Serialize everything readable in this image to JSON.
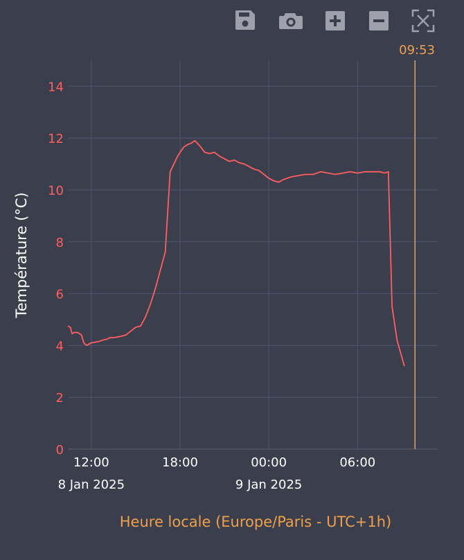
{
  "colors": {
    "background": "#3b3e4c",
    "grid": "#525670",
    "series": "#ff5f5f",
    "ytick": "#ff5f5f",
    "xtick": "#ffffff",
    "axis_title_y": "#ffffff",
    "axis_title_x": "#f0a04b",
    "now_line": "#f0a04b",
    "toolbar_icon": "#9ea1ab"
  },
  "toolbar": {
    "save": "save-icon",
    "snapshot": "camera-icon",
    "zoom_in": "plus-icon",
    "zoom_out": "minus-icon",
    "reset": "autoscale-icon"
  },
  "now_marker": {
    "label": "09:53",
    "x": "2025-01-09T09:53"
  },
  "chart_data": {
    "type": "line",
    "title": "",
    "xlabel": "Heure locale (Europe/Paris - UTC+1h)",
    "ylabel": "Température (°C)",
    "xlim": [
      "2025-01-08T10:25",
      "2025-01-09T11:25"
    ],
    "ylim": [
      0,
      15
    ],
    "yticks": [
      0,
      2,
      4,
      6,
      8,
      10,
      12,
      14
    ],
    "xticks": [
      {
        "x": "2025-01-08T12:00",
        "label": "12:00",
        "sublabel": "8 Jan 2025"
      },
      {
        "x": "2025-01-08T18:00",
        "label": "18:00",
        "sublabel": ""
      },
      {
        "x": "2025-01-09T00:00",
        "label": "00:00",
        "sublabel": "9 Jan 2025"
      },
      {
        "x": "2025-01-09T06:00",
        "label": "06:00",
        "sublabel": ""
      }
    ],
    "grid": true,
    "series": [
      {
        "x": [
          "2025-01-08T10:25",
          "2025-01-08T10:35",
          "2025-01-08T10:42",
          "2025-01-08T10:50",
          "2025-01-08T11:05",
          "2025-01-08T11:20",
          "2025-01-08T11:30",
          "2025-01-08T11:40",
          "2025-01-08T12:00",
          "2025-01-08T12:30",
          "2025-01-08T12:45",
          "2025-01-08T13:05",
          "2025-01-08T13:15",
          "2025-01-08T13:30",
          "2025-01-08T14:00",
          "2025-01-08T14:20",
          "2025-01-08T14:40",
          "2025-01-08T15:00",
          "2025-01-08T15:20",
          "2025-01-08T15:40",
          "2025-01-08T16:00",
          "2025-01-08T16:20",
          "2025-01-08T16:40",
          "2025-01-08T17:00",
          "2025-01-08T17:20",
          "2025-01-08T17:40",
          "2025-01-08T17:50",
          "2025-01-08T18:00",
          "2025-01-08T18:15",
          "2025-01-08T18:30",
          "2025-01-08T18:45",
          "2025-01-08T19:00",
          "2025-01-08T19:20",
          "2025-01-08T19:40",
          "2025-01-08T20:00",
          "2025-01-08T20:20",
          "2025-01-08T20:40",
          "2025-01-08T21:00",
          "2025-01-08T21:20",
          "2025-01-08T21:40",
          "2025-01-08T22:00",
          "2025-01-08T22:20",
          "2025-01-08T22:40",
          "2025-01-08T23:00",
          "2025-01-08T23:20",
          "2025-01-08T23:40",
          "2025-01-09T00:00",
          "2025-01-09T00:20",
          "2025-01-09T00:40",
          "2025-01-09T01:00",
          "2025-01-09T01:30",
          "2025-01-09T02:00",
          "2025-01-09T02:30",
          "2025-01-09T03:00",
          "2025-01-09T03:30",
          "2025-01-09T04:00",
          "2025-01-09T04:30",
          "2025-01-09T05:00",
          "2025-01-09T05:30",
          "2025-01-09T06:00",
          "2025-01-09T06:30",
          "2025-01-09T07:00",
          "2025-01-09T07:30",
          "2025-01-09T07:50",
          "2025-01-09T08:05",
          "2025-01-09T08:20",
          "2025-01-09T08:40",
          "2025-01-09T09:10"
        ],
        "y": [
          4.75,
          4.7,
          4.45,
          4.5,
          4.5,
          4.4,
          4.1,
          4.0,
          4.1,
          4.15,
          4.2,
          4.25,
          4.3,
          4.3,
          4.35,
          4.4,
          4.55,
          4.7,
          4.75,
          5.1,
          5.6,
          6.2,
          6.9,
          7.6,
          10.7,
          11.1,
          11.3,
          11.45,
          11.65,
          11.75,
          11.8,
          11.9,
          11.7,
          11.45,
          11.4,
          11.45,
          11.3,
          11.2,
          11.1,
          11.15,
          11.05,
          11.0,
          10.9,
          10.8,
          10.75,
          10.6,
          10.45,
          10.35,
          10.3,
          10.4,
          10.5,
          10.55,
          10.6,
          10.6,
          10.7,
          10.65,
          10.6,
          10.65,
          10.7,
          10.65,
          10.7,
          10.7,
          10.7,
          10.65,
          10.7,
          5.5,
          4.2,
          3.2
        ]
      }
    ]
  }
}
